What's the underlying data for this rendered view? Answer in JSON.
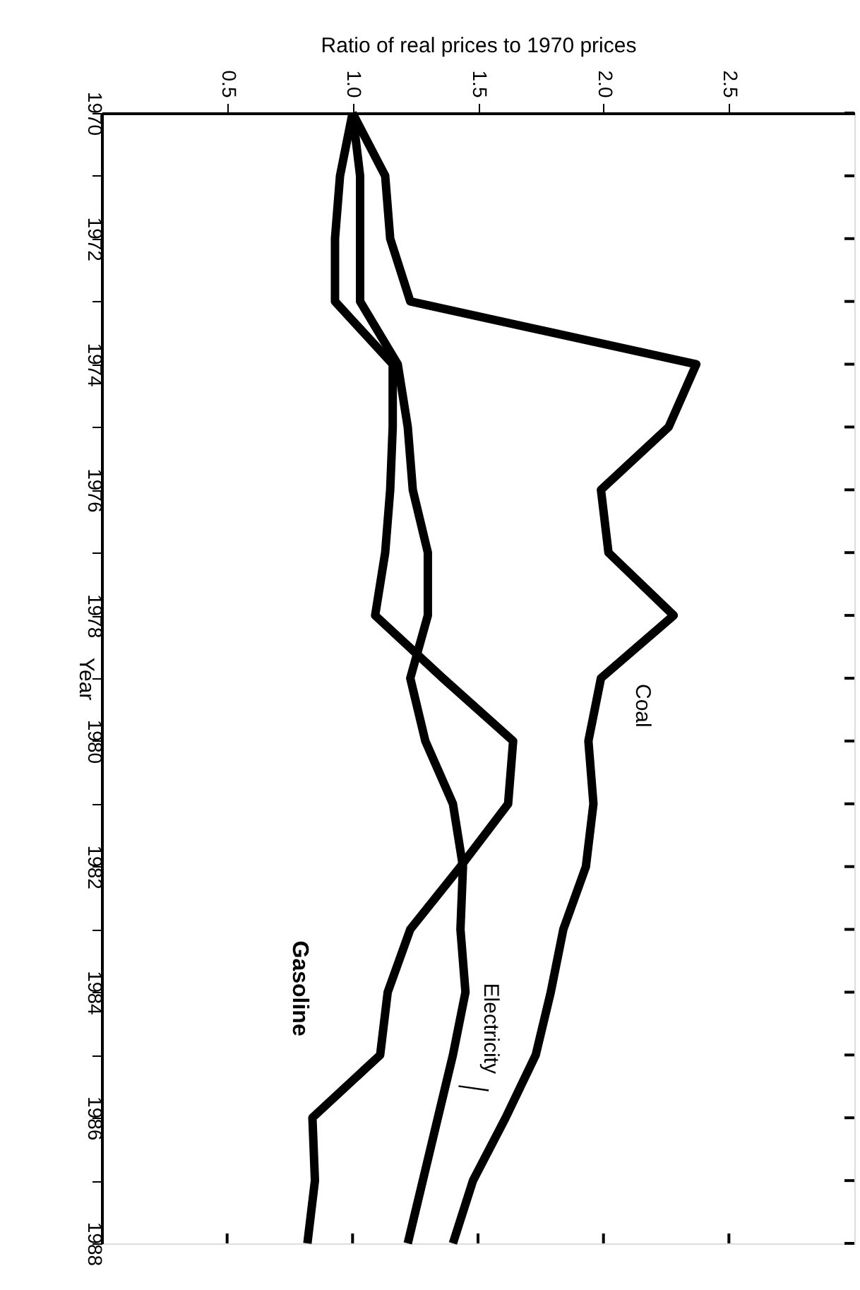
{
  "chart_data": {
    "type": "line",
    "xlabel": "Ratio of real prices to 1970 prices",
    "ylabel": "Year",
    "series": [
      {
        "name": "Coal",
        "color": "#000000",
        "x": [
          1.0,
          1.13,
          1.15,
          1.23,
          2.37,
          2.26,
          1.99,
          2.02,
          2.28,
          1.99,
          1.94,
          1.96,
          1.93,
          1.84,
          1.79,
          1.73,
          1.61,
          1.48,
          1.4
        ],
        "values": [
          1970,
          1971,
          1972,
          1973,
          1974,
          1975,
          1976,
          1977,
          1978,
          1979,
          1980,
          1981,
          1982,
          1983,
          1984,
          1985,
          1986,
          1987,
          1988
        ]
      },
      {
        "name": "Electricity",
        "color": "#000000",
        "x": [
          1.0,
          1.03,
          1.03,
          1.03,
          1.18,
          1.22,
          1.24,
          1.3,
          1.3,
          1.23,
          1.29,
          1.4,
          1.44,
          1.43,
          1.45,
          1.4,
          1.34,
          1.28,
          1.22
        ],
        "values": [
          1970,
          1971,
          1972,
          1973,
          1974,
          1975,
          1976,
          1977,
          1978,
          1979,
          1980,
          1981,
          1982,
          1983,
          1984,
          1985,
          1986,
          1987,
          1988
        ]
      },
      {
        "name": "Gasoline",
        "color": "#000000",
        "x": [
          1.0,
          0.95,
          0.93,
          0.93,
          1.16,
          1.16,
          1.15,
          1.13,
          1.09,
          1.36,
          1.64,
          1.62,
          1.43,
          1.23,
          1.14,
          1.11,
          0.84,
          0.85,
          0.82
        ],
        "values": [
          1970,
          1971,
          1972,
          1973,
          1974,
          1975,
          1976,
          1977,
          1978,
          1979,
          1980,
          1981,
          1982,
          1983,
          1984,
          1985,
          1986,
          1987,
          1988
        ]
      }
    ],
    "xlim": [
      0,
      3
    ],
    "xticks": [
      0.5,
      {
        "value": 1,
        "label": "1.0"
      },
      1.5,
      {
        "value": 2,
        "label": "2.0"
      },
      2.5
    ],
    "ylim": [
      1988,
      1970
    ],
    "yticks": [
      1970,
      {
        "value": 1971,
        "label": null
      },
      1972,
      {
        "value": 1973,
        "label": null
      },
      1974,
      {
        "value": 1975,
        "label": null
      },
      1976,
      {
        "value": 1977,
        "label": null
      },
      1978,
      {
        "value": 1979,
        "label": null
      },
      1980,
      {
        "value": 1981,
        "label": null
      },
      1982,
      {
        "value": 1983,
        "label": null
      },
      1984,
      {
        "value": 1985,
        "label": null
      },
      1986,
      {
        "value": 1987,
        "label": null
      },
      1988
    ],
    "marker": "none",
    "line_style": "solid"
  }
}
